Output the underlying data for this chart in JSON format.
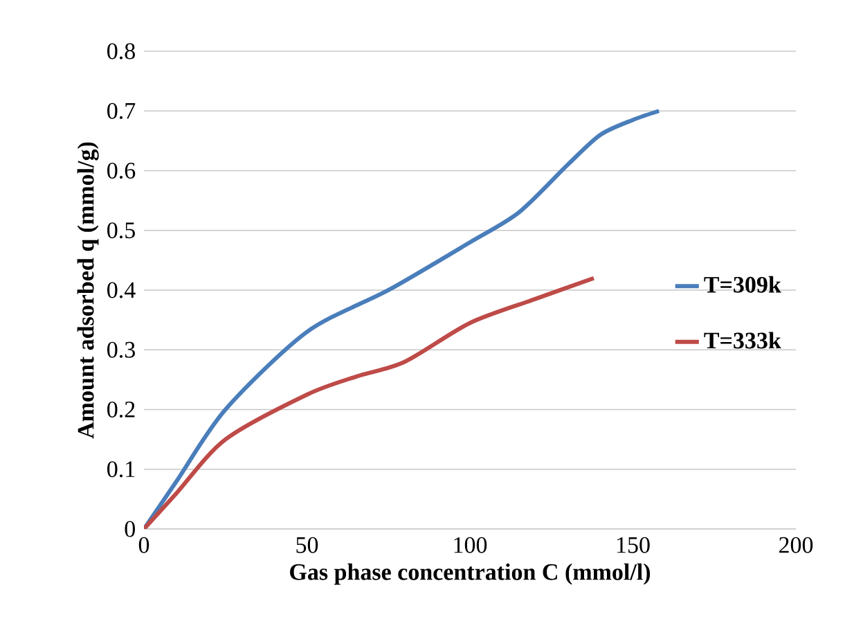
{
  "chart_data": {
    "type": "line",
    "xlabel": "Gas phase concentration C (mmol/l)",
    "ylabel": "Amount adsorbed q (mmol/g)",
    "series": [
      {
        "name": "T=309k",
        "color": "#4a7ebb",
        "x": [
          0,
          10,
          25,
          50,
          75,
          100,
          115,
          130,
          140,
          150,
          158
        ],
        "values": [
          0,
          0.08,
          0.2,
          0.33,
          0.4,
          0.48,
          0.53,
          0.61,
          0.66,
          0.685,
          0.7
        ]
      },
      {
        "name": "T=333k",
        "color": "#be4b48",
        "x": [
          0,
          10,
          25,
          50,
          65,
          80,
          100,
          120,
          138
        ],
        "values": [
          0,
          0.06,
          0.15,
          0.225,
          0.255,
          0.28,
          0.345,
          0.385,
          0.42
        ]
      }
    ],
    "xlim": [
      0,
      200
    ],
    "xticks": [
      0,
      50,
      100,
      150,
      200
    ],
    "ylim": [
      0,
      0.8
    ],
    "yticks": [
      0,
      0.1,
      0.2,
      0.3,
      0.4,
      0.5,
      0.6,
      0.7,
      0.8
    ],
    "grid": "y",
    "legend": "right",
    "marker": "none",
    "line_style": "solid"
  }
}
